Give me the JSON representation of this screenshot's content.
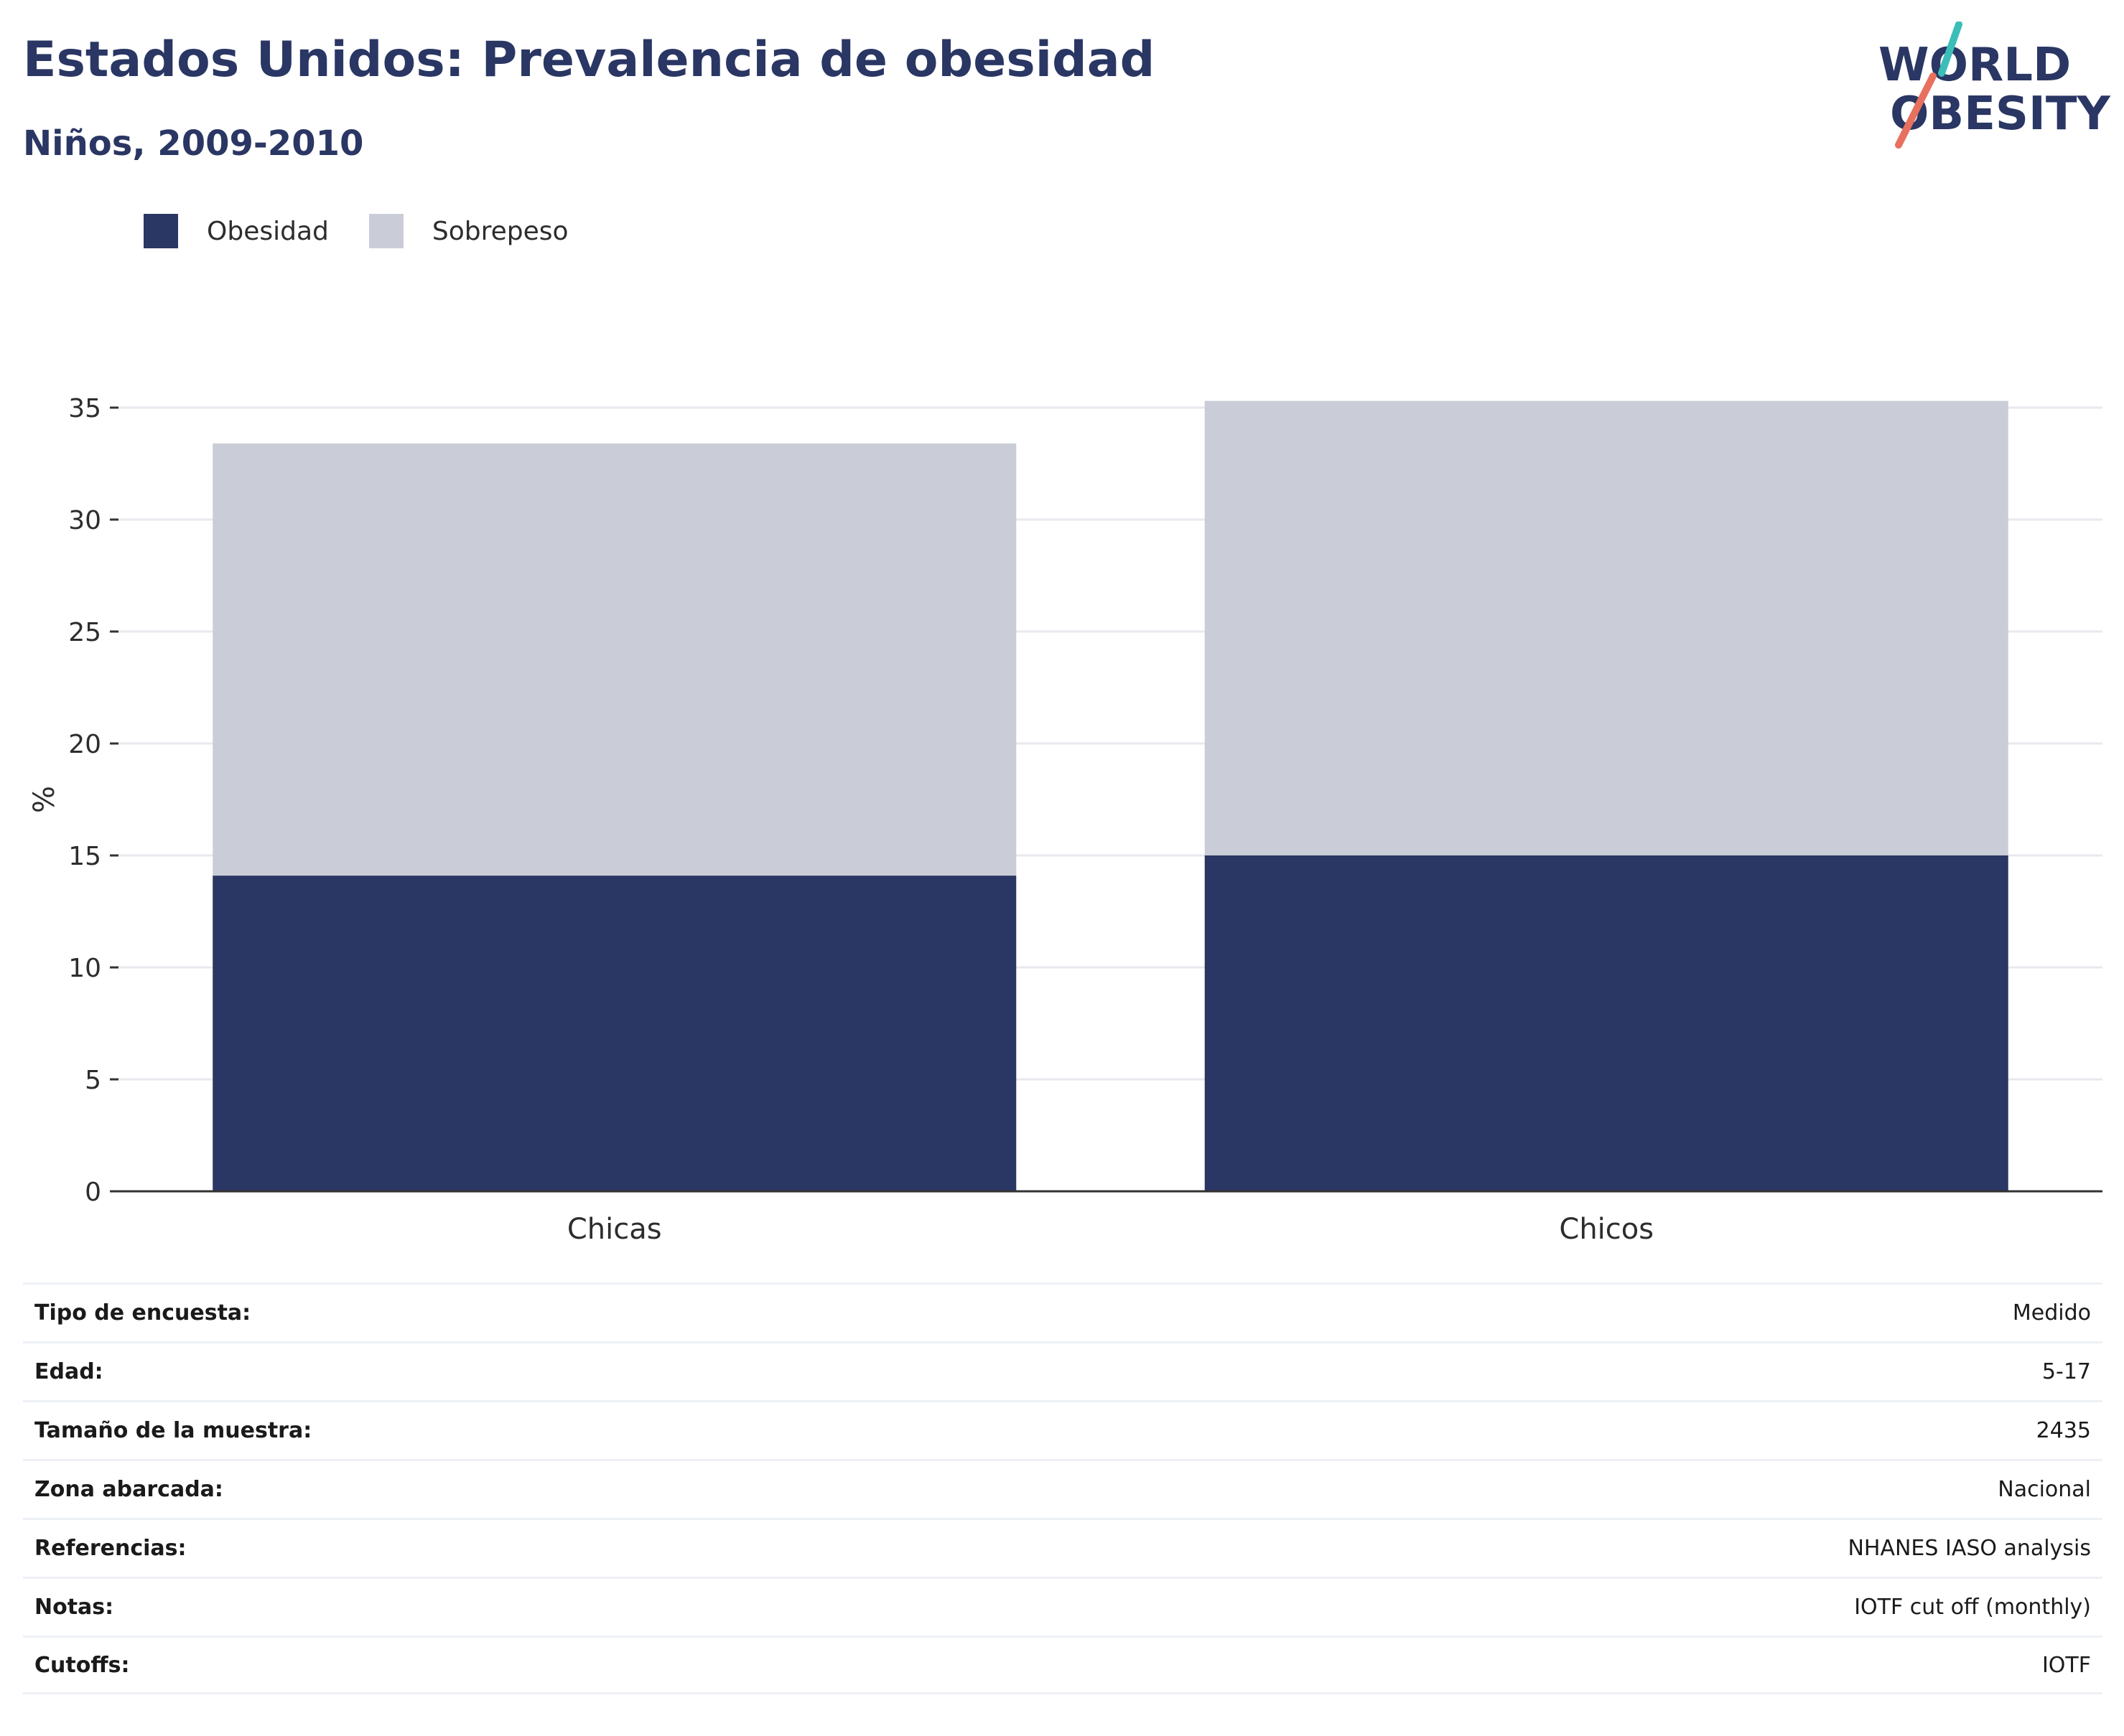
{
  "header": {
    "title": "Estados Unidos: Prevalencia de obesidad",
    "subtitle": "Niños, 2009-2010"
  },
  "logo": {
    "line1": "WORLD",
    "line2": "OBESITY",
    "teal": "#3bbdb8",
    "coral": "#e8705f"
  },
  "colors": {
    "obesity": "#2a3663",
    "overweight": "#cacdd8",
    "grid": "#e8e9ef",
    "axis": "#333333"
  },
  "chart_data": {
    "type": "bar",
    "stacked": true,
    "categories": [
      "Chicas",
      "Chicos"
    ],
    "series": [
      {
        "name": "Obesidad",
        "values": [
          14.1,
          15.0
        ],
        "color": "#2a3663"
      },
      {
        "name": "Sobrepeso",
        "values": [
          19.3,
          20.3
        ],
        "color": "#cacdd8"
      }
    ],
    "ylabel": "%",
    "ylim": [
      0,
      35
    ],
    "yticks": [
      "0",
      "5",
      "10",
      "15",
      "20",
      "25",
      "30",
      "35"
    ],
    "grid": true,
    "legend_position": "top-left"
  },
  "info": [
    {
      "label": "Tipo de encuesta:",
      "value": "Medido"
    },
    {
      "label": "Edad:",
      "value": "5-17"
    },
    {
      "label": "Tamaño de la muestra:",
      "value": "2435"
    },
    {
      "label": "Zona abarcada:",
      "value": "Nacional"
    },
    {
      "label": "Referencias:",
      "value": "NHANES IASO analysis"
    },
    {
      "label": "Notas:",
      "value": "IOTF cut off (monthly)"
    },
    {
      "label": "Cutoffs:",
      "value": "IOTF"
    }
  ]
}
